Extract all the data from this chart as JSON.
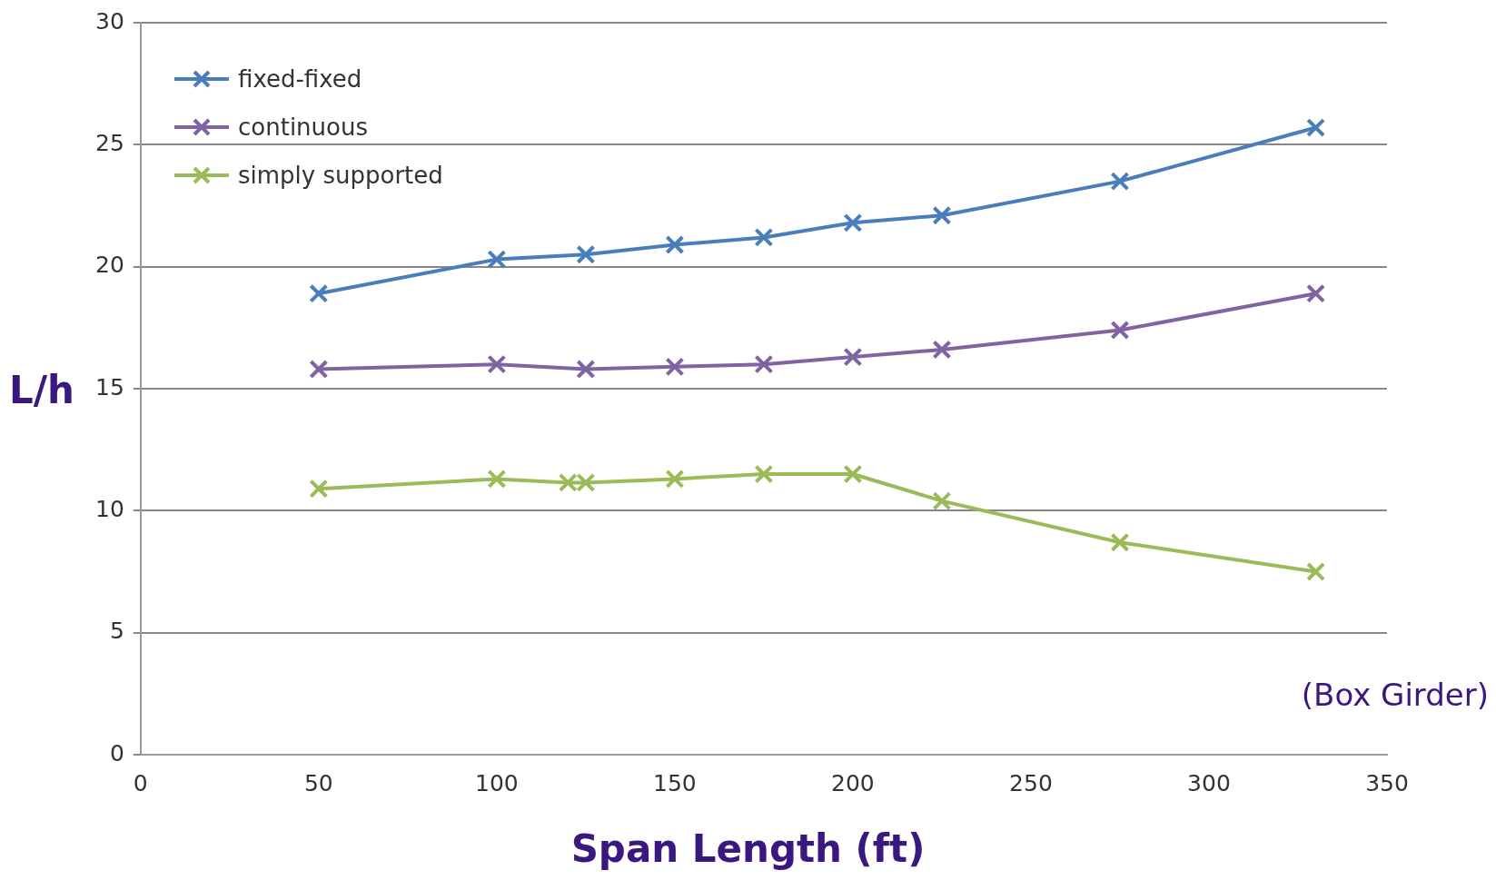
{
  "chart_data": {
    "type": "line",
    "xlabel": "Span Length (ft)",
    "ylabel": "L/h",
    "annotations": [
      "(Box Girder)"
    ],
    "xlim": [
      0,
      350
    ],
    "xticks": [
      0,
      50,
      100,
      150,
      200,
      250,
      300,
      350
    ],
    "ylim": [
      0,
      30
    ],
    "yticks": [
      0,
      5,
      10,
      15,
      20,
      25,
      30
    ],
    "grid": "y",
    "legend": "top left",
    "marker": "cross",
    "line_style": "solid",
    "series": [
      {
        "name": "fixed-fixed",
        "color": "#4a7ebb",
        "x": [
          50,
          100,
          125,
          150,
          175,
          200,
          225,
          275,
          330
        ],
        "values": [
          18.9,
          20.3,
          20.5,
          20.9,
          21.2,
          21.8,
          22.1,
          23.5,
          25.7
        ]
      },
      {
        "name": "continuous",
        "color": "#8064a2",
        "x": [
          50,
          100,
          125,
          150,
          175,
          200,
          225,
          275,
          330
        ],
        "values": [
          15.8,
          16.0,
          15.8,
          15.9,
          16.0,
          16.3,
          16.6,
          17.4,
          18.9
        ]
      },
      {
        "name": "simply supported",
        "color": "#9bbb59",
        "x": [
          50,
          100,
          120,
          125,
          150,
          175,
          200,
          225,
          275,
          330
        ],
        "values": [
          10.9,
          11.3,
          11.15,
          11.15,
          11.3,
          11.5,
          11.5,
          10.4,
          8.7,
          7.5
        ]
      }
    ]
  }
}
